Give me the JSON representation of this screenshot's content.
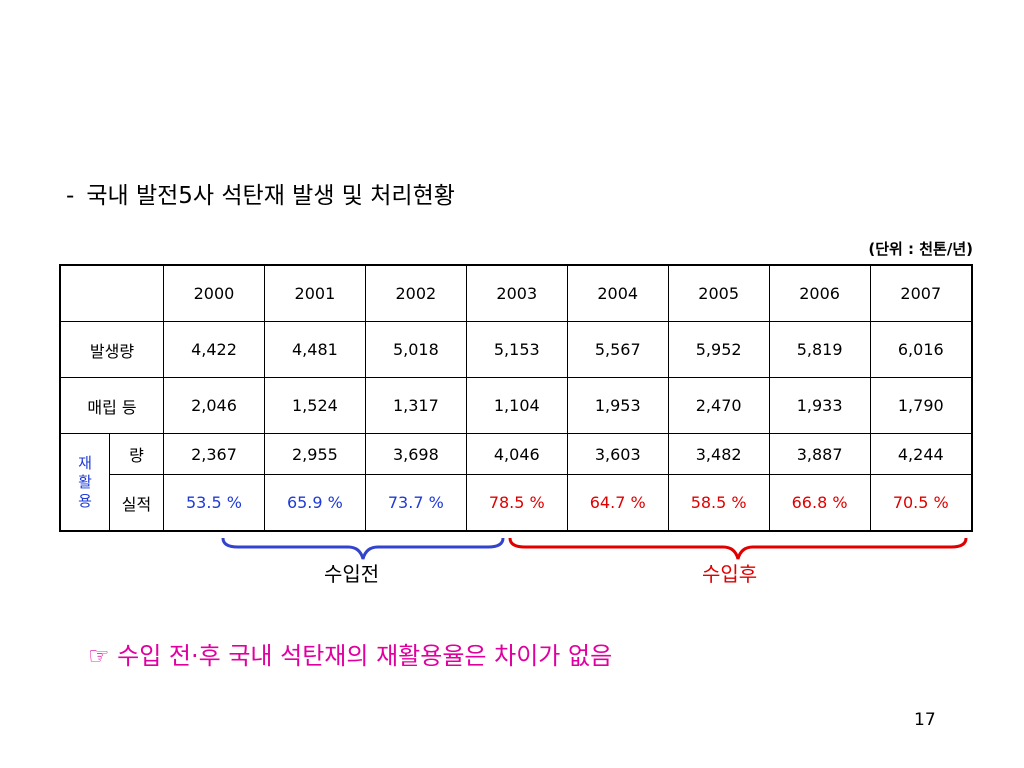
{
  "title": {
    "dash": "-",
    "text": "국내 발전5사 석탄재 발생 및 처리현황"
  },
  "unit": "(단위 : 천톤/년)",
  "table": {
    "years": [
      "2000",
      "2001",
      "2002",
      "2003",
      "2004",
      "2005",
      "2006",
      "2007"
    ],
    "rows": [
      {
        "label": "발생량",
        "values": [
          "4,422",
          "4,481",
          "5,018",
          "5,153",
          "5,567",
          "5,952",
          "5,819",
          "6,016"
        ]
      },
      {
        "label": "매립 등",
        "values": [
          "2,046",
          "1,524",
          "1,317",
          "1,104",
          "1,953",
          "2,470",
          "1,933",
          "1,790"
        ]
      }
    ],
    "recycle": {
      "group_label": [
        "재",
        "활",
        "용"
      ],
      "amount": {
        "label": "량",
        "values": [
          "2,367",
          "2,955",
          "3,698",
          "4,046",
          "3,603",
          "3,482",
          "3,887",
          "4,244"
        ]
      },
      "rate": {
        "label": "실적",
        "values": [
          "53.5 %",
          "65.9 %",
          "73.7 %",
          "78.5 %",
          "64.7 %",
          "58.5 %",
          "66.8 %",
          "70.5 %"
        ]
      }
    }
  },
  "braces": {
    "before": {
      "label": "수입전",
      "color": "#3344cc"
    },
    "after": {
      "label": "수입후",
      "color": "#e00000"
    }
  },
  "colors": {
    "before_text": "#1f3bd6",
    "after_text": "#e00000",
    "note": "#e000a0"
  },
  "note": "☞ 수입 전·후 국내 석탄재의 재활용율은 차이가 없음",
  "page_number": "17"
}
